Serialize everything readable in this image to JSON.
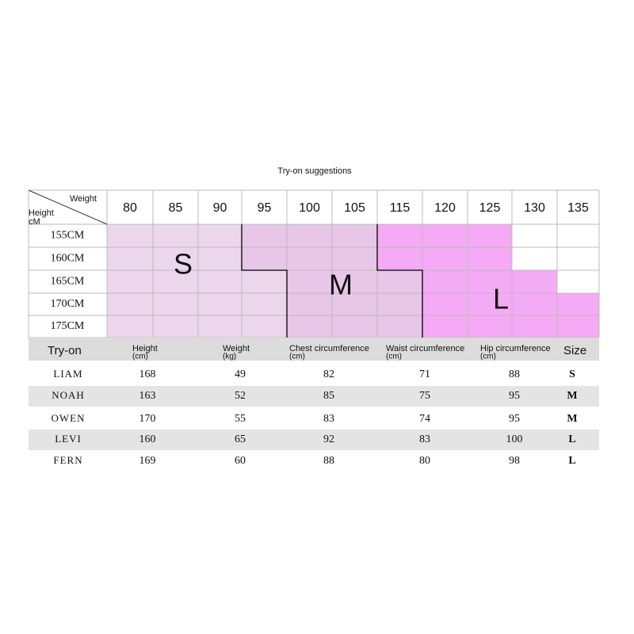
{
  "title": "Try-on suggestions",
  "size_chart": {
    "corner": {
      "column_label": "Weight",
      "row_label": "Height",
      "row_unit": "cM"
    },
    "weights": [
      "80",
      "85",
      "90",
      "95",
      "100",
      "105",
      "115",
      "120",
      "125",
      "130",
      "135"
    ],
    "heights": [
      "155CM",
      "160CM",
      "165CM",
      "170CM",
      "175CM"
    ],
    "regions": [
      {
        "label": "S",
        "color": "#ecd6ec"
      },
      {
        "label": "M",
        "color": "#e7c6e7"
      },
      {
        "label": "L",
        "color": "#f5aaf5"
      }
    ],
    "cell_regions": [
      [
        0,
        0,
        0,
        1,
        1,
        1,
        2,
        2,
        2,
        null,
        null
      ],
      [
        0,
        0,
        0,
        1,
        1,
        1,
        2,
        2,
        2,
        null,
        null
      ],
      [
        0,
        0,
        0,
        0,
        1,
        1,
        1,
        2,
        2,
        2,
        null
      ],
      [
        0,
        0,
        0,
        0,
        1,
        1,
        1,
        2,
        2,
        2,
        2
      ],
      [
        0,
        0,
        0,
        0,
        1,
        1,
        1,
        2,
        2,
        2,
        2
      ]
    ]
  },
  "tryon_table": {
    "headers": [
      {
        "name": "Try-on"
      },
      {
        "name": "Height",
        "unit": "(cm)"
      },
      {
        "name": "Weight",
        "unit": "(kg)"
      },
      {
        "name": "Chest circumference",
        "unit": "(cm)"
      },
      {
        "name": "Waist circumference",
        "unit": "(cm)"
      },
      {
        "name": "Hip circumference",
        "unit": "(cm)"
      },
      {
        "name": "Size"
      }
    ],
    "rows": [
      [
        "LIAM",
        "168",
        "49",
        "82",
        "71",
        "88",
        "S"
      ],
      [
        "NOAH",
        "163",
        "52",
        "85",
        "75",
        "95",
        "M"
      ],
      [
        "OWEN",
        "170",
        "55",
        "83",
        "74",
        "95",
        "M"
      ],
      [
        "LEVI",
        "160",
        "65",
        "92",
        "83",
        "100",
        "L"
      ],
      [
        "FERN",
        "169",
        "60",
        "88",
        "80",
        "98",
        "L"
      ]
    ]
  }
}
